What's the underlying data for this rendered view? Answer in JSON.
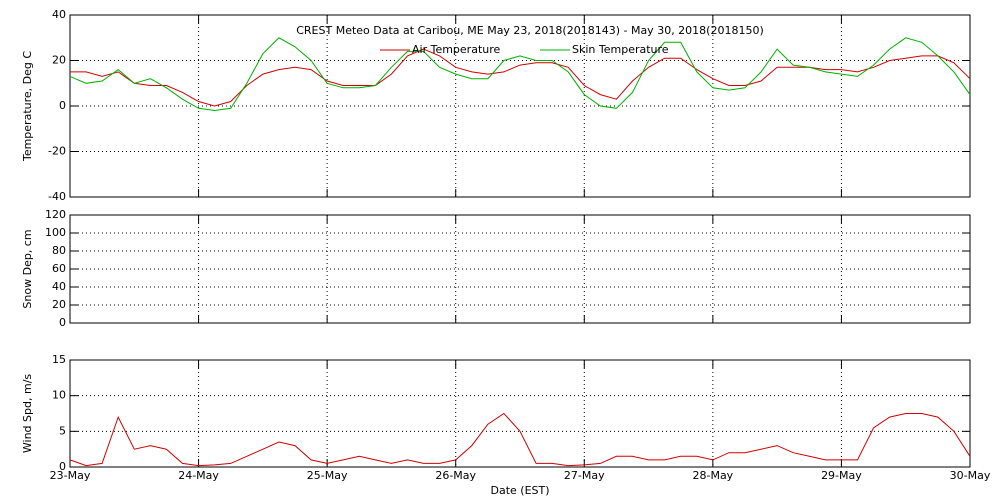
{
  "chart_data": [
    {
      "type": "line",
      "title": "CREST Meteo Data at Caribou, ME   May 23, 2018(2018143) - May 30, 2018(2018150)",
      "ylabel": "Temperature, Deg C",
      "ylim": [
        -40,
        40
      ],
      "yticks": [
        -40,
        -20,
        0,
        20,
        40
      ],
      "xlim": [
        0,
        7
      ],
      "xticks": [
        0,
        1,
        2,
        3,
        4,
        5,
        6,
        7
      ],
      "grid": true,
      "x": [
        0,
        0.125,
        0.25,
        0.375,
        0.5,
        0.625,
        0.75,
        0.875,
        1,
        1.125,
        1.25,
        1.375,
        1.5,
        1.625,
        1.75,
        1.875,
        2,
        2.125,
        2.25,
        2.375,
        2.5,
        2.625,
        2.75,
        2.875,
        3,
        3.125,
        3.25,
        3.375,
        3.5,
        3.625,
        3.75,
        3.875,
        4,
        4.125,
        4.25,
        4.375,
        4.5,
        4.625,
        4.75,
        4.875,
        5,
        5.125,
        5.25,
        5.375,
        5.5,
        5.625,
        5.75,
        5.875,
        6,
        6.125,
        6.25,
        6.375,
        6.5,
        6.625,
        6.75,
        6.875,
        7
      ],
      "series": [
        {
          "name": "Air Temperature",
          "color": "#d00000",
          "values": [
            15,
            15,
            13,
            15,
            10,
            9,
            9,
            6,
            2,
            0,
            2,
            9,
            14,
            16,
            17,
            16,
            11,
            9,
            9,
            9,
            14,
            22,
            25,
            22,
            17,
            15,
            14,
            15,
            18,
            19,
            19,
            17,
            9,
            5,
            3,
            11,
            17,
            21,
            21,
            16,
            12,
            9,
            9,
            11,
            17,
            17,
            17,
            16,
            16,
            15,
            17,
            20,
            21,
            22,
            22,
            19,
            12
          ]
        },
        {
          "name": "Skin Temperature",
          "color": "#00b000",
          "values": [
            13,
            10,
            11,
            16,
            10,
            12,
            8,
            3,
            -1,
            -2,
            -1,
            10,
            23,
            30,
            26,
            20,
            10,
            8,
            8,
            9,
            17,
            24,
            24,
            17,
            14,
            12,
            12,
            20,
            22,
            20,
            20,
            15,
            5,
            0,
            -1,
            6,
            20,
            28,
            28,
            15,
            8,
            7,
            8,
            15,
            25,
            18,
            17,
            15,
            14,
            13,
            18,
            25,
            30,
            28,
            22,
            15,
            5
          ]
        }
      ]
    },
    {
      "type": "line",
      "ylabel": "Snow Dep, cm",
      "ylim": [
        0,
        120
      ],
      "yticks": [
        0,
        20,
        40,
        60,
        80,
        100,
        120
      ],
      "xlim": [
        0,
        7
      ],
      "xticks": [
        0,
        1,
        2,
        3,
        4,
        5,
        6,
        7
      ],
      "grid": true,
      "series": []
    },
    {
      "type": "line",
      "ylabel": "Wind Spd, m/s",
      "xlabel": "Date (EST)",
      "ylim": [
        0,
        15
      ],
      "yticks": [
        0,
        5,
        10,
        15
      ],
      "xlim": [
        0,
        7
      ],
      "xticks": [
        {
          "value": 0,
          "label": "23-May"
        },
        {
          "value": 1,
          "label": "24-May"
        },
        {
          "value": 2,
          "label": "25-May"
        },
        {
          "value": 3,
          "label": "26-May"
        },
        {
          "value": 4,
          "label": "27-May"
        },
        {
          "value": 5,
          "label": "28-May"
        },
        {
          "value": 6,
          "label": "29-May"
        },
        {
          "value": 7,
          "label": "30-May"
        }
      ],
      "grid": true,
      "x": [
        0,
        0.125,
        0.25,
        0.375,
        0.5,
        0.625,
        0.75,
        0.875,
        1,
        1.125,
        1.25,
        1.375,
        1.5,
        1.625,
        1.75,
        1.875,
        2,
        2.125,
        2.25,
        2.375,
        2.5,
        2.625,
        2.75,
        2.875,
        3,
        3.125,
        3.25,
        3.375,
        3.5,
        3.625,
        3.75,
        3.875,
        4,
        4.125,
        4.25,
        4.375,
        4.5,
        4.625,
        4.75,
        4.875,
        5,
        5.125,
        5.25,
        5.375,
        5.5,
        5.625,
        5.75,
        5.875,
        6,
        6.125,
        6.25,
        6.375,
        6.5,
        6.625,
        6.75,
        6.875,
        7
      ],
      "series": [
        {
          "name": "Wind Speed",
          "color": "#d00000",
          "values": [
            1,
            0.2,
            0.5,
            7,
            2.5,
            3,
            2.5,
            0.5,
            0.2,
            0.3,
            0.5,
            1.5,
            2.5,
            3.5,
            3,
            1,
            0.5,
            1,
            1.5,
            1,
            0.5,
            1,
            0.5,
            0.5,
            1,
            3,
            6,
            7.5,
            5,
            0.5,
            0.5,
            0.2,
            0.3,
            0.5,
            1.5,
            1.5,
            1,
            1,
            1.5,
            1.5,
            1,
            2,
            2,
            2.5,
            3,
            2,
            1.5,
            1,
            1,
            1,
            5.5,
            7,
            7.5,
            7.5,
            7,
            5,
            1.5
          ]
        }
      ]
    }
  ]
}
